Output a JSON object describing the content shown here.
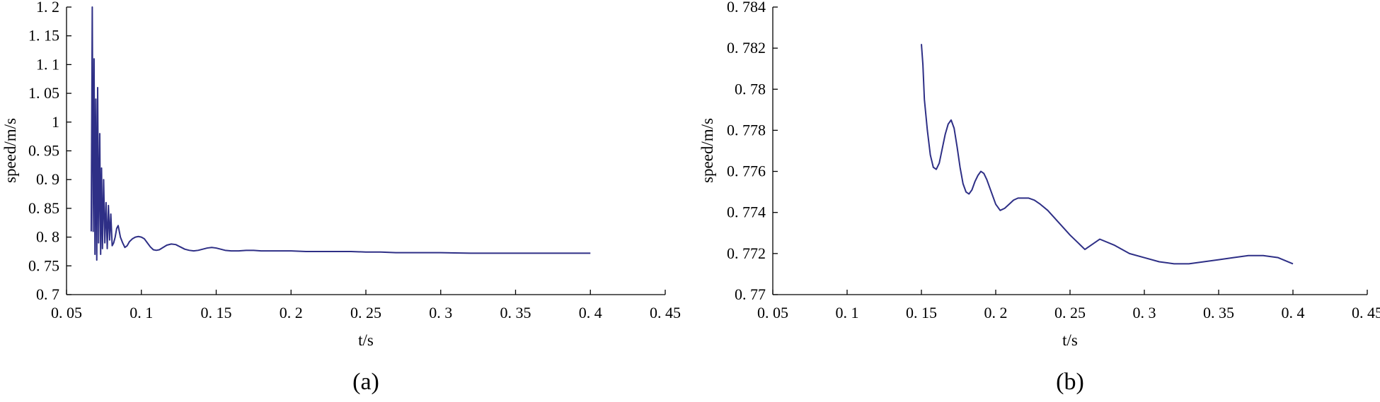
{
  "chart_data": [
    {
      "type": "line",
      "caption": "(a)",
      "xlabel": "t/s",
      "ylabel": "speed/m/s",
      "xlim": [
        0.05,
        0.45
      ],
      "ylim": [
        0.7,
        1.2
      ],
      "xticks": [
        0.05,
        0.1,
        0.15,
        0.2,
        0.25,
        0.3,
        0.35,
        0.4,
        0.45
      ],
      "xtick_labels": [
        "0. 05",
        "0. 1",
        "0. 15",
        "0. 2",
        "0. 25",
        "0. 3",
        "0. 35",
        "0. 4",
        "0. 45"
      ],
      "yticks": [
        0.7,
        0.75,
        0.8,
        0.85,
        0.9,
        0.95,
        1.0,
        1.05,
        1.1,
        1.15,
        1.2
      ],
      "ytick_labels": [
        "0. 7",
        "0. 75",
        "0. 8",
        "0. 85",
        "0. 9",
        "0. 95",
        "1",
        "1. 05",
        "1. 1",
        "1. 15",
        "1. 2"
      ],
      "grid": false,
      "color": "#2e2f86",
      "series": [
        {
          "x": [
            0.0665,
            0.0672,
            0.0678,
            0.0684,
            0.069,
            0.0696,
            0.0702,
            0.0708,
            0.0714,
            0.0722,
            0.0728,
            0.0734,
            0.074,
            0.0748,
            0.0756,
            0.0764,
            0.0772,
            0.078,
            0.0788,
            0.0796,
            0.0805,
            0.0815,
            0.0825,
            0.0835,
            0.0845,
            0.086,
            0.0875,
            0.089,
            0.0905,
            0.092,
            0.094,
            0.096,
            0.098,
            0.1,
            0.102,
            0.104,
            0.106,
            0.108,
            0.11,
            0.112,
            0.1145,
            0.117,
            0.12,
            0.123,
            0.126,
            0.129,
            0.132,
            0.135,
            0.138,
            0.141,
            0.144,
            0.147,
            0.15,
            0.153,
            0.156,
            0.16,
            0.165,
            0.17,
            0.175,
            0.18,
            0.19,
            0.2,
            0.21,
            0.22,
            0.23,
            0.24,
            0.25,
            0.26,
            0.27,
            0.28,
            0.3,
            0.32,
            0.35,
            0.38,
            0.4
          ],
          "y": [
            0.81,
            1.2,
            0.81,
            1.11,
            0.77,
            1.04,
            0.76,
            1.06,
            0.79,
            0.98,
            0.77,
            0.92,
            0.78,
            0.9,
            0.79,
            0.86,
            0.78,
            0.855,
            0.795,
            0.84,
            0.785,
            0.79,
            0.8,
            0.815,
            0.82,
            0.8,
            0.79,
            0.782,
            0.785,
            0.792,
            0.797,
            0.8,
            0.801,
            0.8,
            0.797,
            0.79,
            0.783,
            0.778,
            0.777,
            0.778,
            0.782,
            0.786,
            0.788,
            0.787,
            0.783,
            0.779,
            0.777,
            0.776,
            0.777,
            0.779,
            0.781,
            0.782,
            0.781,
            0.779,
            0.777,
            0.776,
            0.776,
            0.777,
            0.777,
            0.776,
            0.776,
            0.776,
            0.775,
            0.775,
            0.775,
            0.775,
            0.774,
            0.774,
            0.773,
            0.773,
            0.773,
            0.772,
            0.772,
            0.772,
            0.772
          ]
        }
      ]
    },
    {
      "type": "line",
      "caption": "(b)",
      "xlabel": "t/s",
      "ylabel": "speed/m/s",
      "xlim": [
        0.05,
        0.45
      ],
      "ylim": [
        0.77,
        0.784
      ],
      "xticks": [
        0.05,
        0.1,
        0.15,
        0.2,
        0.25,
        0.3,
        0.35,
        0.4,
        0.45
      ],
      "xtick_labels": [
        "0. 05",
        "0. 1",
        "0. 15",
        "0. 2",
        "0. 25",
        "0. 3",
        "0. 35",
        "0. 4",
        "0. 45"
      ],
      "yticks": [
        0.77,
        0.772,
        0.774,
        0.776,
        0.778,
        0.78,
        0.782,
        0.784
      ],
      "ytick_labels": [
        "0. 77",
        "0. 772",
        "0. 774",
        "0. 776",
        "0. 778",
        "0. 78",
        "0. 782",
        "0. 784"
      ],
      "grid": false,
      "color": "#2e2f86",
      "series": [
        {
          "x": [
            0.15,
            0.151,
            0.152,
            0.154,
            0.156,
            0.158,
            0.16,
            0.162,
            0.164,
            0.166,
            0.168,
            0.17,
            0.172,
            0.174,
            0.176,
            0.178,
            0.18,
            0.182,
            0.184,
            0.186,
            0.188,
            0.19,
            0.192,
            0.194,
            0.196,
            0.198,
            0.2,
            0.203,
            0.206,
            0.209,
            0.212,
            0.215,
            0.218,
            0.222,
            0.226,
            0.23,
            0.235,
            0.24,
            0.245,
            0.25,
            0.26,
            0.27,
            0.28,
            0.29,
            0.3,
            0.31,
            0.32,
            0.33,
            0.34,
            0.35,
            0.36,
            0.37,
            0.38,
            0.39,
            0.4
          ],
          "y": [
            0.7822,
            0.7812,
            0.7795,
            0.778,
            0.7768,
            0.7762,
            0.7761,
            0.7764,
            0.7771,
            0.7778,
            0.7783,
            0.7785,
            0.7781,
            0.7772,
            0.7762,
            0.7754,
            0.775,
            0.7749,
            0.7751,
            0.7755,
            0.7758,
            0.776,
            0.7759,
            0.7756,
            0.7752,
            0.7748,
            0.7744,
            0.7741,
            0.7742,
            0.7744,
            0.7746,
            0.7747,
            0.7747,
            0.7747,
            0.7746,
            0.7744,
            0.7741,
            0.7737,
            0.7733,
            0.7729,
            0.7722,
            0.7727,
            0.7724,
            0.772,
            0.7718,
            0.7716,
            0.7715,
            0.7715,
            0.7716,
            0.7717,
            0.7718,
            0.7719,
            0.7719,
            0.7718,
            0.7715
          ]
        }
      ]
    }
  ]
}
